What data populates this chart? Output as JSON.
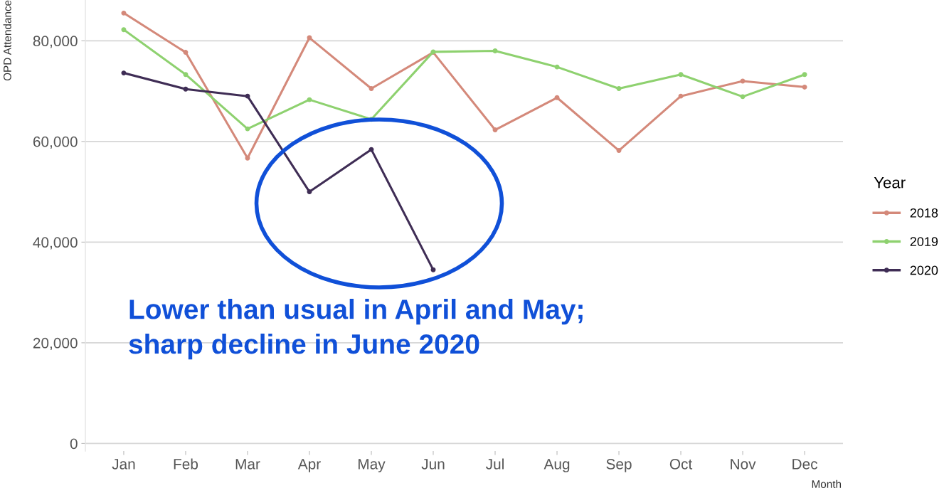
{
  "chart_data": {
    "type": "line",
    "xlabel": "Month",
    "ylabel": "OPD Attendance",
    "legend_title": "Year",
    "categories": [
      "Jan",
      "Feb",
      "Mar",
      "Apr",
      "May",
      "Jun",
      "Jul",
      "Aug",
      "Sep",
      "Oct",
      "Nov",
      "Dec"
    ],
    "series": [
      {
        "name": "2018",
        "color": "#d4897a",
        "values": [
          85500,
          77700,
          56700,
          80600,
          70500,
          77700,
          62300,
          68700,
          58200,
          69000,
          72000,
          70800
        ]
      },
      {
        "name": "2019",
        "color": "#8ed16f",
        "values": [
          82200,
          73300,
          62500,
          68300,
          64400,
          77800,
          78000,
          74800,
          70500,
          73300,
          68900,
          73300
        ]
      },
      {
        "name": "2020",
        "color": "#3f2d55",
        "values": [
          73600,
          70400,
          69000,
          50000,
          58400,
          34500,
          null,
          null,
          null,
          null,
          null,
          null
        ]
      }
    ],
    "ylim": [
      -1500,
      88100
    ],
    "yticks": [
      {
        "value": 0,
        "label": "0"
      },
      {
        "value": 20000,
        "label": "20,000"
      },
      {
        "value": 40000,
        "label": "40,000"
      },
      {
        "value": 60000,
        "label": "60,000"
      },
      {
        "value": 80000,
        "label": "80,000"
      }
    ],
    "grid": "y",
    "legend": "right",
    "marker": "circle",
    "line_style": "solid",
    "annotations": [
      "Lower than usual in April and May;\nsharp decline in June 2020"
    ]
  }
}
